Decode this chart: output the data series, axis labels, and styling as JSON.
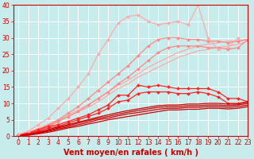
{
  "xlabel": "Vent moyen/en rafales ( km/h )",
  "bg_color": "#c8ecec",
  "grid_color": "#ffffff",
  "x_values": [
    0,
    1,
    2,
    3,
    4,
    5,
    6,
    7,
    8,
    9,
    10,
    11,
    12,
    13,
    14,
    15,
    16,
    17,
    18,
    19,
    20,
    21,
    22,
    23
  ],
  "series": [
    {
      "color": "#ffaaaa",
      "lw": 0.9,
      "marker": null,
      "data": [
        0.0,
        1.2,
        2.4,
        3.6,
        4.8,
        6.5,
        8.0,
        9.5,
        11.5,
        13.5,
        15.5,
        17.0,
        19.0,
        21.0,
        22.5,
        24.0,
        25.5,
        26.5,
        27.5,
        28.0,
        28.5,
        29.0,
        29.0,
        29.5
      ]
    },
    {
      "color": "#ffaaaa",
      "lw": 0.9,
      "marker": null,
      "data": [
        0.0,
        1.0,
        2.2,
        3.3,
        4.5,
        6.0,
        7.5,
        8.8,
        10.5,
        12.5,
        14.5,
        16.0,
        18.0,
        19.5,
        21.0,
        22.5,
        24.0,
        25.0,
        26.0,
        26.5,
        27.0,
        27.5,
        28.0,
        29.0
      ]
    },
    {
      "color": "#ff8888",
      "lw": 0.9,
      "marker": "D",
      "markersize": 2,
      "data": [
        0.0,
        0.8,
        1.8,
        3.5,
        5.0,
        7.0,
        9.0,
        11.5,
        14.0,
        16.5,
        19.0,
        21.5,
        24.5,
        27.5,
        29.5,
        30.0,
        30.0,
        29.5,
        29.5,
        29.0,
        29.0,
        28.5,
        29.0,
        29.5
      ]
    },
    {
      "color": "#ff8888",
      "lw": 0.9,
      "marker": "D",
      "markersize": 2,
      "data": [
        0.0,
        0.7,
        1.5,
        3.0,
        4.5,
        6.0,
        7.5,
        9.5,
        11.5,
        13.5,
        16.0,
        18.0,
        20.5,
        23.0,
        25.5,
        27.0,
        27.5,
        27.5,
        27.5,
        27.0,
        27.0,
        26.5,
        27.0,
        29.5
      ]
    },
    {
      "color": "#ff2222",
      "lw": 0.9,
      "marker": "D",
      "markersize": 2,
      "data": [
        0.5,
        1.0,
        2.0,
        3.0,
        3.5,
        4.5,
        5.5,
        6.5,
        8.0,
        9.5,
        12.5,
        12.5,
        15.5,
        15.0,
        15.5,
        15.0,
        14.5,
        14.5,
        14.5,
        14.5,
        13.5,
        11.5,
        11.5,
        10.5
      ]
    },
    {
      "color": "#ff2222",
      "lw": 0.9,
      "marker": "D",
      "markersize": 2,
      "data": [
        0.3,
        0.8,
        1.5,
        2.5,
        3.0,
        4.0,
        5.0,
        6.0,
        7.0,
        8.5,
        10.5,
        11.0,
        13.0,
        13.5,
        13.5,
        13.5,
        13.0,
        13.0,
        13.5,
        13.0,
        12.0,
        10.0,
        10.0,
        10.5
      ]
    },
    {
      "color": "#cc0000",
      "lw": 0.9,
      "marker": null,
      "data": [
        0.2,
        0.6,
        1.2,
        2.0,
        2.8,
        3.5,
        4.3,
        5.0,
        5.8,
        6.5,
        7.2,
        7.8,
        8.3,
        8.8,
        9.3,
        9.5,
        9.5,
        9.8,
        9.8,
        10.0,
        10.0,
        9.8,
        9.8,
        10.5
      ]
    },
    {
      "color": "#cc0000",
      "lw": 0.9,
      "marker": null,
      "data": [
        0.1,
        0.5,
        1.0,
        1.7,
        2.5,
        3.2,
        4.0,
        4.7,
        5.4,
        6.0,
        6.7,
        7.3,
        7.8,
        8.3,
        8.8,
        9.0,
        9.0,
        9.3,
        9.3,
        9.5,
        9.5,
        9.3,
        9.5,
        10.0
      ]
    },
    {
      "color": "#cc0000",
      "lw": 0.9,
      "marker": null,
      "data": [
        0.0,
        0.4,
        0.9,
        1.5,
        2.2,
        2.8,
        3.5,
        4.2,
        5.0,
        5.5,
        6.2,
        6.8,
        7.2,
        7.7,
        8.2,
        8.5,
        8.5,
        8.8,
        8.8,
        9.0,
        9.0,
        8.8,
        9.0,
        9.5
      ]
    },
    {
      "color": "#cc0000",
      "lw": 0.9,
      "marker": null,
      "data": [
        0.0,
        0.3,
        0.7,
        1.2,
        1.8,
        2.5,
        3.0,
        3.7,
        4.3,
        5.0,
        5.5,
        6.0,
        6.5,
        7.0,
        7.5,
        8.0,
        8.0,
        8.2,
        8.2,
        8.5,
        8.5,
        8.3,
        8.5,
        9.0
      ]
    },
    {
      "color": "#ffaaaa",
      "lw": 0.9,
      "marker": "D",
      "markersize": 2,
      "data": [
        0.5,
        1.5,
        3.5,
        5.5,
        8.5,
        11.5,
        15.0,
        19.0,
        25.0,
        29.5,
        34.5,
        36.5,
        37.0,
        35.0,
        34.0,
        34.5,
        35.0,
        34.0,
        40.0,
        30.0,
        26.5,
        27.0,
        30.0,
        null
      ]
    }
  ],
  "ylim": [
    0,
    40
  ],
  "xlim": [
    -0.5,
    23
  ],
  "yticks": [
    0,
    5,
    10,
    15,
    20,
    25,
    30,
    35,
    40
  ],
  "xticks": [
    0,
    1,
    2,
    3,
    4,
    5,
    6,
    7,
    8,
    9,
    10,
    11,
    12,
    13,
    14,
    15,
    16,
    17,
    18,
    19,
    20,
    21,
    22,
    23
  ],
  "tick_fontsize": 5.5,
  "xlabel_fontsize": 7,
  "axis_color": "#cc0000"
}
